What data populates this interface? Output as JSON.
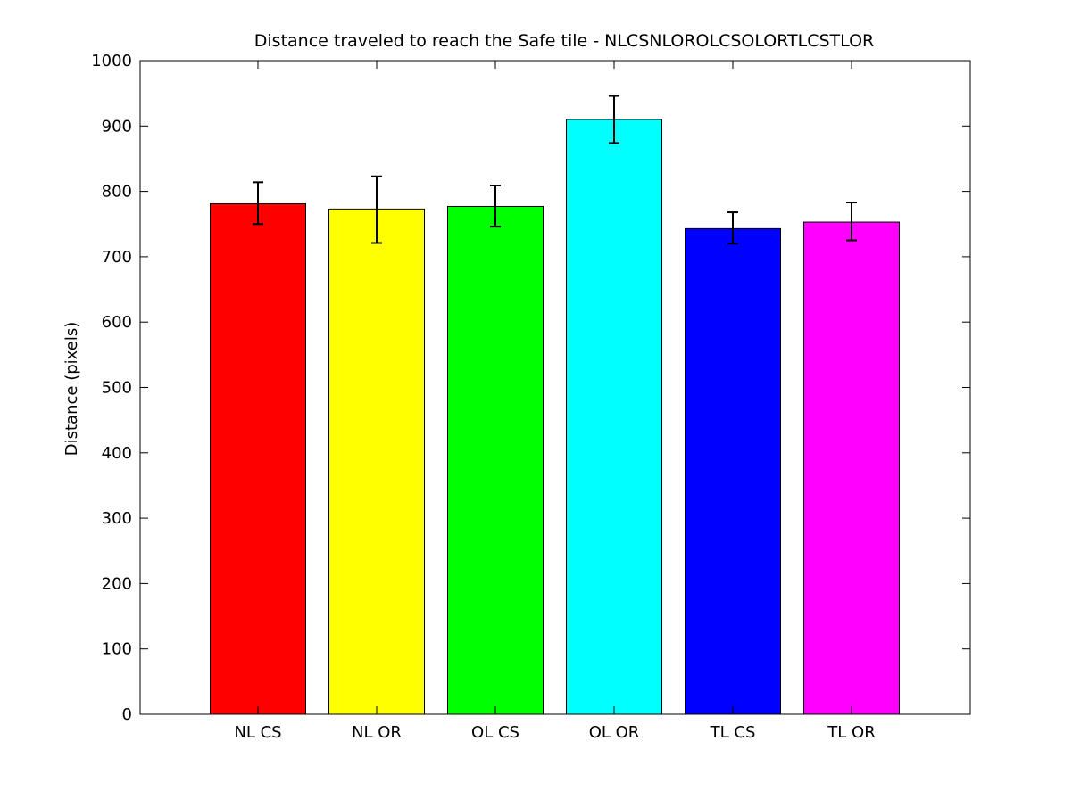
{
  "chart_data": {
    "type": "bar",
    "title": "Distance traveled to reach the Safe tile - NLCSNLOROLCSOLORTLCSTLOR",
    "xlabel": "",
    "ylabel": "Distance (pixels)",
    "ylim": [
      0,
      1000
    ],
    "yticks": [
      "0",
      "100",
      "200",
      "300",
      "400",
      "500",
      "600",
      "700",
      "800",
      "900",
      "1000"
    ],
    "grid": false,
    "categories": [
      "NL CS",
      "NL OR",
      "OL CS",
      "OL OR",
      "TL CS",
      "TL OR"
    ],
    "values": [
      781,
      773,
      777,
      910,
      743,
      753
    ],
    "error_low": [
      750,
      721,
      746,
      874,
      720,
      725
    ],
    "error_high": [
      814,
      823,
      809,
      946,
      768,
      783
    ],
    "colors": [
      "#ff0000",
      "#ffff00",
      "#00ff00",
      "#00ffff",
      "#0000ff",
      "#ff00ff"
    ]
  }
}
